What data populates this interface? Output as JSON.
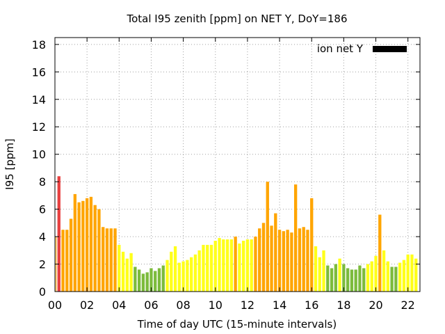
{
  "chart_data": {
    "type": "bar",
    "title": "Total I95 zenith [ppm] on NET Y, DoY=186",
    "xlabel": "Time of day UTC (15-minute intervals)",
    "ylabel": "I95 [ppm]",
    "ylim": [
      0,
      18.5
    ],
    "y_ticks": [
      "0",
      "2",
      "4",
      "6",
      "8",
      "10",
      "12",
      "14",
      "16",
      "18"
    ],
    "x_ticks": [
      "00",
      "02",
      "04",
      "06",
      "08",
      "10",
      "12",
      "14",
      "16",
      "18",
      "20",
      "22"
    ],
    "grid": true,
    "legend": {
      "label": "ion net Y",
      "color": "#000000",
      "placement": "top-right"
    },
    "color_scale": {
      "green": "#7cbb3c",
      "yellow": "#ffff1a",
      "orange": "#ffa500",
      "red": "#e84040"
    },
    "x_range_hours": [
      0,
      22.75
    ],
    "slot_minutes": 15,
    "values": [
      4.0,
      8.4,
      4.5,
      4.5,
      5.3,
      7.1,
      6.5,
      6.6,
      6.8,
      6.9,
      6.3,
      6.0,
      4.7,
      4.6,
      4.6,
      4.6,
      3.4,
      2.9,
      2.4,
      2.8,
      1.8,
      1.6,
      1.3,
      1.4,
      1.7,
      1.5,
      1.7,
      1.9,
      2.3,
      2.9,
      3.3,
      2.1,
      2.2,
      2.3,
      2.5,
      2.7,
      3.0,
      3.4,
      3.4,
      3.4,
      3.7,
      3.9,
      3.8,
      3.8,
      3.8,
      4.0,
      3.5,
      3.7,
      3.8,
      3.8,
      4.0,
      4.6,
      5.0,
      8.0,
      4.8,
      5.7,
      4.5,
      4.4,
      4.5,
      4.3,
      7.8,
      4.6,
      4.7,
      4.5,
      6.8,
      3.3,
      2.5,
      3.0,
      1.9,
      1.7,
      2.0,
      2.4,
      2.0,
      1.7,
      1.6,
      1.6,
      1.9,
      1.7,
      2.0,
      2.2,
      2.6,
      5.6,
      3.0,
      2.2,
      1.8,
      1.8,
      2.1,
      2.3,
      2.7,
      2.7,
      2.4
    ],
    "colors": [
      "orange",
      "red",
      "orange",
      "orange",
      "orange",
      "orange",
      "orange",
      "orange",
      "orange",
      "orange",
      "orange",
      "orange",
      "orange",
      "orange",
      "orange",
      "orange",
      "yellow",
      "yellow",
      "yellow",
      "yellow",
      "green",
      "green",
      "green",
      "green",
      "green",
      "green",
      "green",
      "green",
      "yellow",
      "yellow",
      "yellow",
      "yellow",
      "yellow",
      "yellow",
      "yellow",
      "yellow",
      "yellow",
      "yellow",
      "yellow",
      "yellow",
      "yellow",
      "yellow",
      "yellow",
      "yellow",
      "yellow",
      "orange",
      "yellow",
      "yellow",
      "yellow",
      "yellow",
      "orange",
      "orange",
      "orange",
      "orange",
      "orange",
      "orange",
      "orange",
      "orange",
      "orange",
      "orange",
      "orange",
      "orange",
      "orange",
      "orange",
      "orange",
      "yellow",
      "yellow",
      "yellow",
      "green",
      "green",
      "green",
      "yellow",
      "green",
      "green",
      "green",
      "green",
      "green",
      "green",
      "yellow",
      "yellow",
      "yellow",
      "orange",
      "yellow",
      "yellow",
      "green",
      "green",
      "yellow",
      "yellow",
      "yellow",
      "yellow",
      "yellow"
    ]
  }
}
